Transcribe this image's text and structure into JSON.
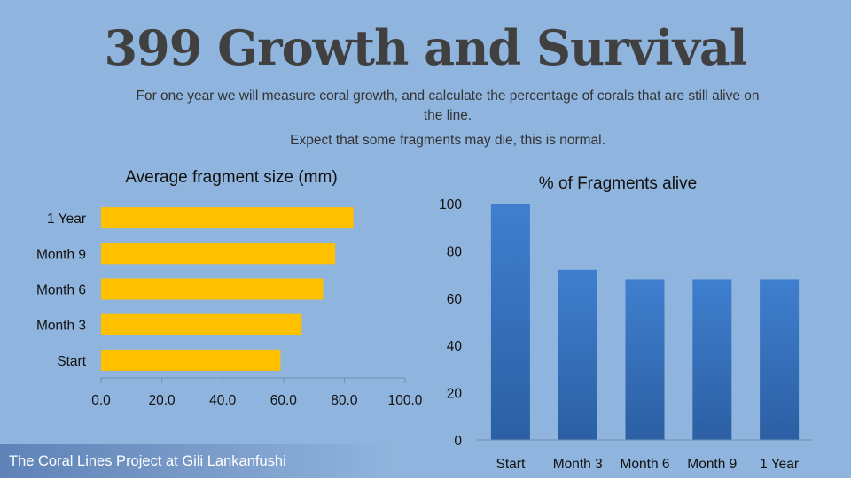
{
  "title": "399 Growth and Survival",
  "subtitle_line1": "For one year we will measure coral growth, and calculate the percentage of corals that are still alive on the line.",
  "subtitle_line2": "Expect that some fragments may die, this is normal.",
  "footer": "The Coral Lines Project at Gili Lankanfushi",
  "colors": {
    "background": "#8fb4dd",
    "bar_gold": "#ffc000",
    "bar_blue": "#3f7fcf"
  },
  "chart_data": [
    {
      "type": "bar",
      "orientation": "horizontal",
      "title": "Average fragment size (mm)",
      "categories": [
        "Start",
        "Month 3",
        "Month 6",
        "Month 9",
        "1 Year"
      ],
      "values": [
        59,
        66,
        73,
        77,
        83
      ],
      "xlim": [
        0,
        100
      ],
      "ticks": [
        "0.0",
        "20.0",
        "40.0",
        "60.0",
        "80.0",
        "100.0"
      ],
      "tick_values": [
        0,
        20,
        40,
        60,
        80,
        100
      ],
      "grid": false
    },
    {
      "type": "bar",
      "orientation": "vertical",
      "title": "% of Fragments alive",
      "categories": [
        "Start",
        "Month 3",
        "Month 6",
        "Month 9",
        "1 Year"
      ],
      "values": [
        100,
        72,
        68,
        68,
        68
      ],
      "ylim": [
        0,
        100
      ],
      "ticks": [
        "0",
        "20",
        "40",
        "60",
        "80",
        "100"
      ],
      "tick_values": [
        0,
        20,
        40,
        60,
        80,
        100
      ],
      "grid": false
    }
  ]
}
